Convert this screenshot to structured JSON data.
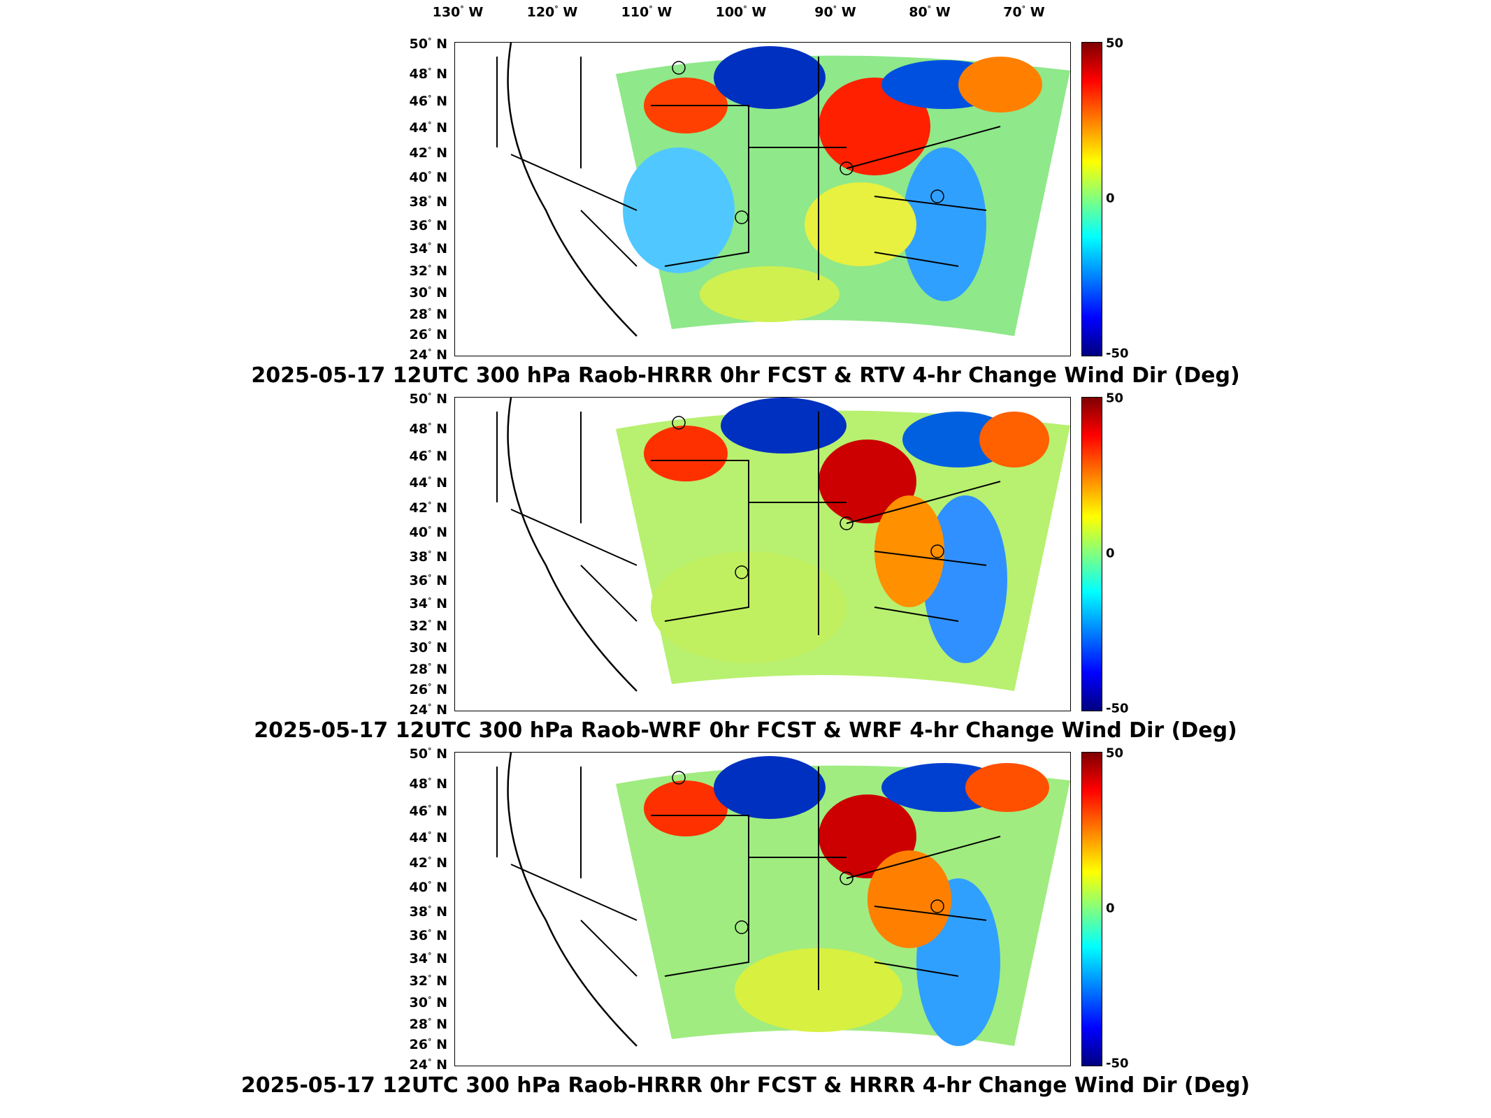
{
  "lon_labels": [
    {
      "deg": "130",
      "hem": "W"
    },
    {
      "deg": "120",
      "hem": "W"
    },
    {
      "deg": "110",
      "hem": "W"
    },
    {
      "deg": "100",
      "hem": "W"
    },
    {
      "deg": "90",
      "hem": "W"
    },
    {
      "deg": "80",
      "hem": "W"
    },
    {
      "deg": "70",
      "hem": "W"
    }
  ],
  "lat_labels": [
    {
      "deg": "50",
      "hem": "N"
    },
    {
      "deg": "48",
      "hem": "N"
    },
    {
      "deg": "46",
      "hem": "N"
    },
    {
      "deg": "44",
      "hem": "N"
    },
    {
      "deg": "42",
      "hem": "N"
    },
    {
      "deg": "40",
      "hem": "N"
    },
    {
      "deg": "38",
      "hem": "N"
    },
    {
      "deg": "36",
      "hem": "N"
    },
    {
      "deg": "34",
      "hem": "N"
    },
    {
      "deg": "32",
      "hem": "N"
    },
    {
      "deg": "30",
      "hem": "N"
    },
    {
      "deg": "28",
      "hem": "N"
    },
    {
      "deg": "26",
      "hem": "N"
    },
    {
      "deg": "24",
      "hem": "N"
    }
  ],
  "colorbar": {
    "max": "50",
    "mid": "0",
    "min": "-50"
  },
  "panels": [
    {
      "title": "2025-05-17 12UTC 300 hPa Raob-HRRR 0hr FCST & RTV 4-hr Change Wind Dir (Deg)"
    },
    {
      "title": "2025-05-17 12UTC 300 hPa Raob-WRF 0hr FCST & WRF 4-hr Change Wind Dir (Deg)"
    },
    {
      "title": "2025-05-17 12UTC 300 hPa Raob-HRRR 0hr FCST & HRRR 4-hr Change Wind Dir (Deg)"
    }
  ],
  "colors": {
    "red": "#cc0000",
    "orange": "#ff8c00",
    "yellow": "#ffff00",
    "green": "#80e080",
    "cyan": "#40c0ff",
    "blue": "#0030c0"
  }
}
